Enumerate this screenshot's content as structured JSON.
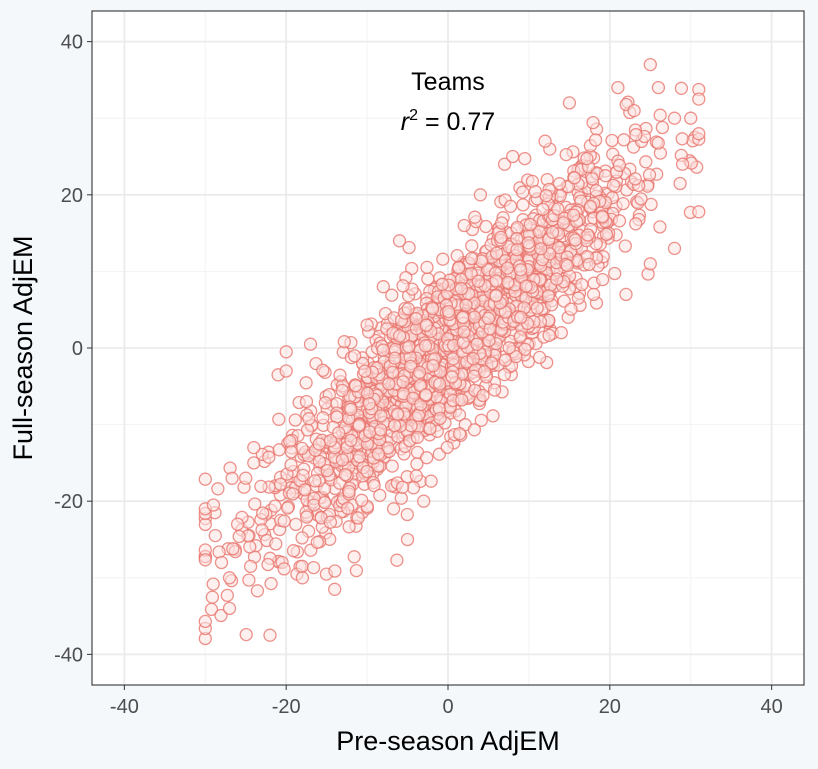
{
  "chart_data": {
    "type": "scatter",
    "title": "",
    "xlabel": "Pre-season AdjEM",
    "ylabel": "Full-season AdjEM",
    "xlim": [
      -44,
      44
    ],
    "ylim": [
      -44,
      44
    ],
    "x_ticks": [
      -40,
      -20,
      0,
      20,
      40
    ],
    "y_ticks": [
      -40,
      -20,
      0,
      20,
      40
    ],
    "x_tick_labels": [
      "-40",
      "-20",
      "0",
      "20",
      "40"
    ],
    "y_tick_labels": [
      "-40",
      "-20",
      "0",
      "20",
      "40"
    ],
    "grid": true,
    "annotation": {
      "label": "Teams",
      "r_symbol": "r",
      "r_exponent": "2",
      "r_value_text": " = 0.77",
      "r_squared": 0.77
    },
    "series": [
      {
        "marker": "hollow-circle",
        "color": "#E8736B",
        "n_points_approx": 2000,
        "slope": 0.95,
        "intercept": 0,
        "x_mean": 0,
        "x_sd": 11,
        "residual_sd": 5.4,
        "sample_points": [
          {
            "x": -30,
            "y": -21
          },
          {
            "x": -29,
            "y": -20.5
          },
          {
            "x": -27,
            "y": -34
          },
          {
            "x": -27,
            "y": -30
          },
          {
            "x": -28,
            "y": -28
          },
          {
            "x": -26,
            "y": -23
          },
          {
            "x": -25,
            "y": -17
          },
          {
            "x": -24,
            "y": -13
          },
          {
            "x": -24,
            "y": -15
          },
          {
            "x": -22,
            "y": -37.5
          },
          {
            "x": -21,
            "y": -3.5
          },
          {
            "x": -20,
            "y": -3
          },
          {
            "x": -20,
            "y": -0.5
          },
          {
            "x": -17,
            "y": 0.5
          },
          {
            "x": -18,
            "y": -30
          },
          {
            "x": -14,
            "y": -31.5
          },
          {
            "x": -12,
            "y": -8
          },
          {
            "x": -10,
            "y": 3
          },
          {
            "x": -8,
            "y": 8
          },
          {
            "x": -6,
            "y": 14
          },
          {
            "x": -5,
            "y": -25
          },
          {
            "x": -3,
            "y": -20
          },
          {
            "x": 2,
            "y": 16
          },
          {
            "x": 4,
            "y": 20
          },
          {
            "x": 7,
            "y": 24
          },
          {
            "x": 8,
            "y": 25
          },
          {
            "x": 9,
            "y": 4
          },
          {
            "x": 12,
            "y": 27
          },
          {
            "x": 14,
            "y": 2
          },
          {
            "x": 15,
            "y": 32
          },
          {
            "x": 18,
            "y": 7
          },
          {
            "x": 21,
            "y": 34
          },
          {
            "x": 22,
            "y": 7
          },
          {
            "x": 23,
            "y": 31
          },
          {
            "x": 25,
            "y": 37
          },
          {
            "x": 25,
            "y": 11
          },
          {
            "x": 26,
            "y": 34
          },
          {
            "x": 28,
            "y": 30
          },
          {
            "x": 28,
            "y": 13
          },
          {
            "x": 29,
            "y": 24
          },
          {
            "x": 30,
            "y": 30
          },
          {
            "x": 31,
            "y": 32.5
          }
        ]
      }
    ]
  },
  "colors": {
    "page_background": "#f4f8fb",
    "panel_background": "#ffffff",
    "grid_major": "#ebebeb",
    "grid_minor": "#f3f3f3",
    "panel_border": "#333333",
    "tick_text": "#4d4d4d",
    "axis_title": "#000000",
    "marker_fill": "#fbe3e1"
  }
}
